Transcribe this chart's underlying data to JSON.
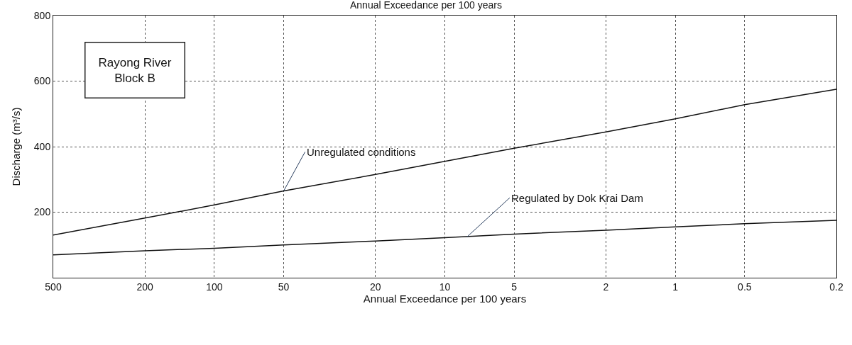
{
  "chart_data": {
    "type": "line",
    "title": "Annual Exceedance per 100 years",
    "xlabel": "Annual Exceedance per 100 years",
    "ylabel": "Discharge (m³/s)",
    "x": [
      500,
      200,
      100,
      50,
      20,
      10,
      5,
      2,
      1,
      0.5,
      0.2
    ],
    "series": [
      {
        "color": "#111111",
        "values": [
          130,
          182,
          222,
          265,
          315,
          355,
          395,
          445,
          485,
          528,
          575
        ]
      },
      {
        "color": "#111111",
        "values": [
          70,
          82,
          90,
          100,
          112,
          122,
          133,
          145,
          155,
          165,
          175
        ]
      }
    ],
    "xlim": [
      500,
      0.2
    ],
    "xticks": [
      500,
      200,
      100,
      50,
      20,
      10,
      5,
      2,
      1,
      0.5,
      0.2
    ],
    "ylim": [
      0,
      800
    ],
    "yticks": [
      200,
      400,
      600,
      800
    ],
    "log": "x",
    "grid": true,
    "marker": "none",
    "line_style": "solid",
    "annotations": [
      "Rayong River\nBlock B",
      {
        "text": "Unregulated conditions",
        "x": 50,
        "y": 265
      },
      {
        "text": "Regulated by Dok Krai Dam",
        "x": 8,
        "y": 125
      }
    ]
  }
}
